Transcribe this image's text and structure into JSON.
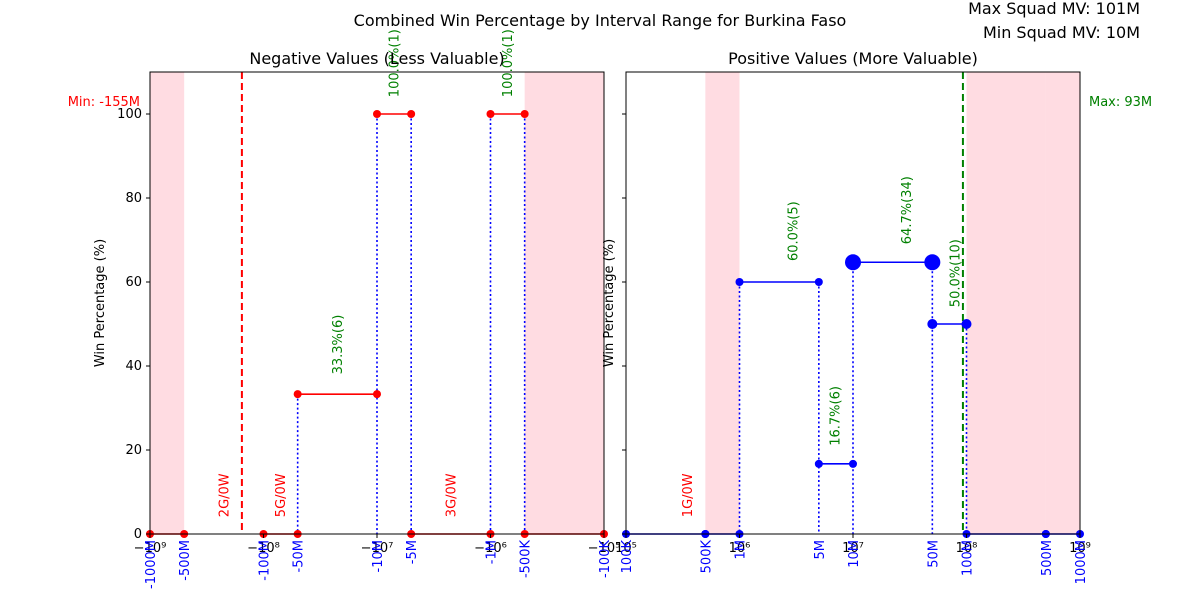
{
  "figure": {
    "title": "Combined Win Percentage by Interval Range for Burkina Faso",
    "max_squad_label": "Max Squad MV: 101M",
    "min_squad_label": "Min Squad MV: 10M"
  },
  "colors": {
    "negative": "#ff0000",
    "positive": "#0000ff",
    "annotation": "#008000",
    "tick_label": "#0000ff",
    "shade": "#ffc0cb",
    "stem": "#0000ff"
  },
  "chart_data": [
    {
      "type": "line",
      "title": "Negative Values (Less Valuable)",
      "ylabel": "Win Percentage (%)",
      "xscale": "symlog-negative",
      "xlim": [
        -1000000000,
        -100000
      ],
      "ylim": [
        0,
        110
      ],
      "yticks": [
        0,
        20,
        40,
        60,
        80,
        100
      ],
      "x_tick_values": [
        -1000000000,
        -100000000,
        -10000000,
        -1000000,
        -100000
      ],
      "x_tick_labels": [
        "−10⁹",
        "−10⁸",
        "−10⁷",
        "−10⁶",
        "−10⁵"
      ],
      "interval_tick_values": [
        -1000000000,
        -500000000,
        -100000000,
        -50000000,
        -10000000,
        -5000000,
        -1000000,
        -500000,
        -100000
      ],
      "interval_tick_labels": [
        "-1000M",
        "-500M",
        "-100M",
        "-50M",
        "-10M",
        "-5M",
        "-1M",
        "-500K",
        "-100K"
      ],
      "shaded_ranges": [
        [
          -1000000000,
          -500000000
        ],
        [
          -500000,
          -100000
        ]
      ],
      "marker_line": {
        "x": -155000000,
        "label": "Min: -155M"
      },
      "series": [
        {
          "x": [
            -1000000000,
            -500000000
          ],
          "y": [
            0,
            0
          ],
          "marker_size": [
            4,
            4
          ]
        },
        {
          "x": [
            -100000000,
            -50000000
          ],
          "y": [
            0,
            0
          ],
          "marker_size": [
            4,
            4
          ]
        },
        {
          "x": [
            -50000000,
            -10000000
          ],
          "y": [
            33.3,
            33.3
          ],
          "marker_size": [
            4,
            4
          ]
        },
        {
          "x": [
            -10000000,
            -5000000
          ],
          "y": [
            100,
            100
          ],
          "marker_size": [
            4,
            4
          ]
        },
        {
          "x": [
            -5000000,
            -1000000
          ],
          "y": [
            0,
            0
          ],
          "marker_size": [
            4,
            4
          ]
        },
        {
          "x": [
            -1000000,
            -500000
          ],
          "y": [
            100,
            100
          ],
          "marker_size": [
            4,
            4
          ]
        },
        {
          "x": [
            -500000,
            -100000
          ],
          "y": [
            0,
            0
          ],
          "marker_size": [
            4,
            4
          ]
        }
      ],
      "stems": [
        {
          "x": -50000000,
          "y": 33.3
        },
        {
          "x": -10000000,
          "y": 100
        },
        {
          "x": -5000000,
          "y": 100
        },
        {
          "x": -1000000,
          "y": 100
        },
        {
          "x": -500000,
          "y": 100
        }
      ],
      "annotations": [
        {
          "text": "2G/0W",
          "x": -220000000,
          "y": 4,
          "color": "red"
        },
        {
          "text": "5G/0W",
          "x": -70000000,
          "y": 4,
          "color": "red"
        },
        {
          "text": "3G/0W",
          "x": -2200000,
          "y": 4,
          "color": "red"
        },
        {
          "text": "33.3%(6)",
          "x": -22000000,
          "y": 38,
          "color": "green"
        },
        {
          "text": "100.0%(1)",
          "x": -7000000,
          "y": 104,
          "color": "green"
        },
        {
          "text": "100.0%(1)",
          "x": -700000,
          "y": 104,
          "color": "green"
        }
      ]
    },
    {
      "type": "line",
      "title": "Positive Values (More Valuable)",
      "ylabel": "Win Percentage (%)",
      "xscale": "log",
      "xlim": [
        100000,
        1000000000
      ],
      "ylim": [
        0,
        110
      ],
      "yticks": [
        0,
        20,
        40,
        60,
        80,
        100
      ],
      "x_tick_values": [
        100000,
        1000000,
        10000000,
        100000000,
        1000000000
      ],
      "x_tick_labels": [
        "10⁵",
        "10⁶",
        "10⁷",
        "10⁸",
        "10⁹"
      ],
      "interval_tick_values": [
        100000,
        500000,
        1000000,
        5000000,
        10000000,
        50000000,
        100000000,
        500000000,
        1000000000
      ],
      "interval_tick_labels": [
        "100K",
        "500K",
        "1M",
        "5M",
        "10M",
        "50M",
        "100M",
        "500M",
        "1000M"
      ],
      "shaded_ranges": [
        [
          500000,
          1000000
        ],
        [
          100000000,
          500000000
        ],
        [
          500000000,
          1000000000
        ]
      ],
      "marker_line": {
        "x": 93000000,
        "label": "Max: 93M"
      },
      "series": [
        {
          "x": [
            100000,
            500000
          ],
          "y": [
            0,
            0
          ],
          "marker_size": [
            4,
            4
          ]
        },
        {
          "x": [
            500000,
            1000000
          ],
          "y": [
            0,
            0
          ],
          "marker_size": [
            4,
            4
          ]
        },
        {
          "x": [
            1000000,
            5000000
          ],
          "y": [
            60,
            60
          ],
          "marker_size": [
            4,
            4
          ]
        },
        {
          "x": [
            5000000,
            10000000
          ],
          "y": [
            16.7,
            16.7
          ],
          "marker_size": [
            4,
            4
          ]
        },
        {
          "x": [
            10000000,
            50000000
          ],
          "y": [
            64.7,
            64.7
          ],
          "marker_size": [
            8,
            8
          ]
        },
        {
          "x": [
            50000000,
            100000000
          ],
          "y": [
            50,
            50
          ],
          "marker_size": [
            5,
            5
          ]
        },
        {
          "x": [
            100000000,
            500000000
          ],
          "y": [
            0,
            0
          ],
          "marker_size": [
            4,
            4
          ]
        },
        {
          "x": [
            500000000,
            1000000000
          ],
          "y": [
            0,
            0
          ],
          "marker_size": [
            4,
            4
          ]
        }
      ],
      "stems": [
        {
          "x": 1000000,
          "y": 60
        },
        {
          "x": 5000000,
          "y": 60
        },
        {
          "x": 10000000,
          "y": 64.7
        },
        {
          "x": 50000000,
          "y": 64.7
        },
        {
          "x": 100000000,
          "y": 50
        }
      ],
      "annotations": [
        {
          "text": "1G/0W",
          "x": 350000,
          "y": 4,
          "color": "red"
        },
        {
          "text": "60.0%(5)",
          "x": 3000000,
          "y": 65,
          "color": "green"
        },
        {
          "text": "16.7%(6)",
          "x": 7000000,
          "y": 21,
          "color": "green"
        },
        {
          "text": "64.7%(34)",
          "x": 30000000,
          "y": 69,
          "color": "green"
        },
        {
          "text": "50.0%(10)",
          "x": 80000000,
          "y": 54,
          "color": "green"
        }
      ]
    }
  ]
}
